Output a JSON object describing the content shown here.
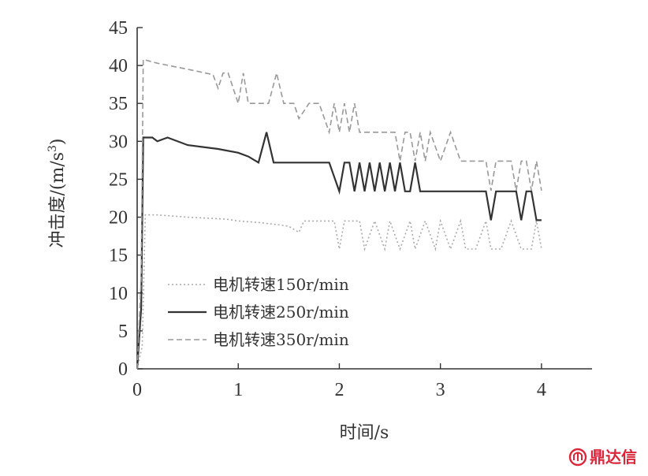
{
  "chart_data": {
    "type": "line",
    "xlabel": "时间/s",
    "ylabel": "冲击度/(m/s",
    "ylabel_sup": "3",
    "ylabel_close": ")",
    "xlim": [
      0,
      4.5
    ],
    "ylim": [
      0,
      45
    ],
    "xticks": [
      "0",
      "1",
      "2",
      "3",
      "4"
    ],
    "yticks": [
      "0",
      "5",
      "10",
      "15",
      "20",
      "25",
      "30",
      "35",
      "40",
      "45"
    ],
    "grid": false,
    "legend_position": "bottom-left",
    "series": [
      {
        "name": "电机转速150r/min",
        "color": "#aaaaaa",
        "dash": "2,3",
        "x": [
          0,
          0.05,
          0.08,
          0.2,
          0.5,
          0.8,
          0.9,
          1.0,
          1.2,
          1.4,
          1.5,
          1.6,
          1.65,
          1.7,
          1.9,
          1.95,
          2.0,
          2.05,
          2.1,
          2.2,
          2.25,
          2.35,
          2.45,
          2.5,
          2.6,
          2.7,
          2.75,
          2.85,
          2.95,
          3.0,
          3.1,
          3.2,
          3.25,
          3.35,
          3.45,
          3.5,
          3.6,
          3.7,
          3.8,
          3.9,
          3.95,
          4.0
        ],
        "y": [
          0,
          3,
          20.3,
          20.3,
          20.0,
          19.8,
          19.7,
          19.5,
          19.3,
          19.0,
          18.8,
          18.0,
          19.5,
          19.5,
          19.5,
          19.5,
          15.8,
          19.5,
          19.5,
          19.5,
          15.8,
          19.5,
          15.8,
          19.5,
          15.8,
          19.5,
          15.8,
          19.5,
          15.8,
          19.5,
          15.8,
          19.5,
          15.8,
          15.8,
          19.5,
          15.8,
          15.8,
          19.5,
          15.8,
          15.8,
          19.5,
          15.8
        ]
      },
      {
        "name": "电机转速250r/min",
        "color": "#333333",
        "dash": "",
        "x": [
          0,
          0.04,
          0.06,
          0.15,
          0.2,
          0.3,
          0.5,
          0.8,
          1.0,
          1.1,
          1.2,
          1.28,
          1.35,
          1.5,
          1.8,
          1.9,
          2.0,
          2.05,
          2.1,
          2.15,
          2.2,
          2.25,
          2.3,
          2.35,
          2.4,
          2.45,
          2.5,
          2.55,
          2.6,
          2.65,
          2.7,
          2.75,
          2.8,
          2.85,
          2.9,
          2.95,
          3.0,
          3.2,
          3.45,
          3.5,
          3.55,
          3.6,
          3.75,
          3.8,
          3.85,
          3.9,
          3.95,
          4.0
        ],
        "y": [
          0,
          8,
          30.5,
          30.5,
          30.0,
          30.5,
          29.5,
          29.0,
          28.5,
          28.0,
          27.2,
          31.2,
          27.2,
          27.2,
          27.2,
          27.2,
          23.4,
          27.2,
          27.2,
          23.4,
          27.2,
          23.4,
          27.2,
          23.4,
          27.2,
          23.4,
          27.2,
          23.4,
          27.2,
          23.4,
          23.4,
          27.2,
          23.4,
          23.4,
          23.4,
          23.4,
          23.4,
          23.4,
          23.4,
          19.6,
          23.4,
          23.4,
          23.4,
          19.6,
          23.4,
          23.4,
          19.6,
          19.6
        ]
      },
      {
        "name": "电机转速350r/min",
        "color": "#999999",
        "dash": "7,4",
        "x": [
          0,
          0.04,
          0.06,
          0.2,
          0.5,
          0.75,
          0.8,
          0.85,
          0.9,
          0.95,
          1.0,
          1.05,
          1.1,
          1.15,
          1.2,
          1.3,
          1.38,
          1.45,
          1.55,
          1.6,
          1.7,
          1.8,
          1.9,
          1.95,
          2.0,
          2.05,
          2.1,
          2.15,
          2.2,
          2.25,
          2.3,
          2.4,
          2.55,
          2.6,
          2.65,
          2.7,
          2.75,
          2.8,
          2.85,
          2.9,
          3.0,
          3.1,
          3.2,
          3.3,
          3.45,
          3.5,
          3.55,
          3.65,
          3.7,
          3.75,
          3.8,
          3.85,
          3.9,
          3.95,
          4.0
        ],
        "y": [
          0,
          12,
          40.8,
          40.3,
          39.5,
          38.8,
          37.0,
          39.0,
          39.0,
          37.0,
          35.0,
          39.0,
          35.0,
          35.0,
          35.0,
          35.0,
          39.0,
          35.0,
          35.0,
          33.0,
          35.0,
          35.0,
          31.2,
          35.0,
          31.2,
          35.0,
          31.2,
          35.0,
          31.2,
          31.2,
          31.2,
          31.2,
          31.2,
          27.4,
          31.2,
          31.2,
          27.4,
          31.2,
          27.4,
          31.2,
          27.4,
          31.2,
          27.4,
          27.4,
          27.4,
          23.5,
          27.4,
          27.4,
          27.4,
          23.5,
          27.4,
          27.4,
          23.5,
          27.4,
          23.5
        ]
      }
    ]
  },
  "watermark": {
    "text": "鼎达信",
    "color": "#d9263a"
  }
}
